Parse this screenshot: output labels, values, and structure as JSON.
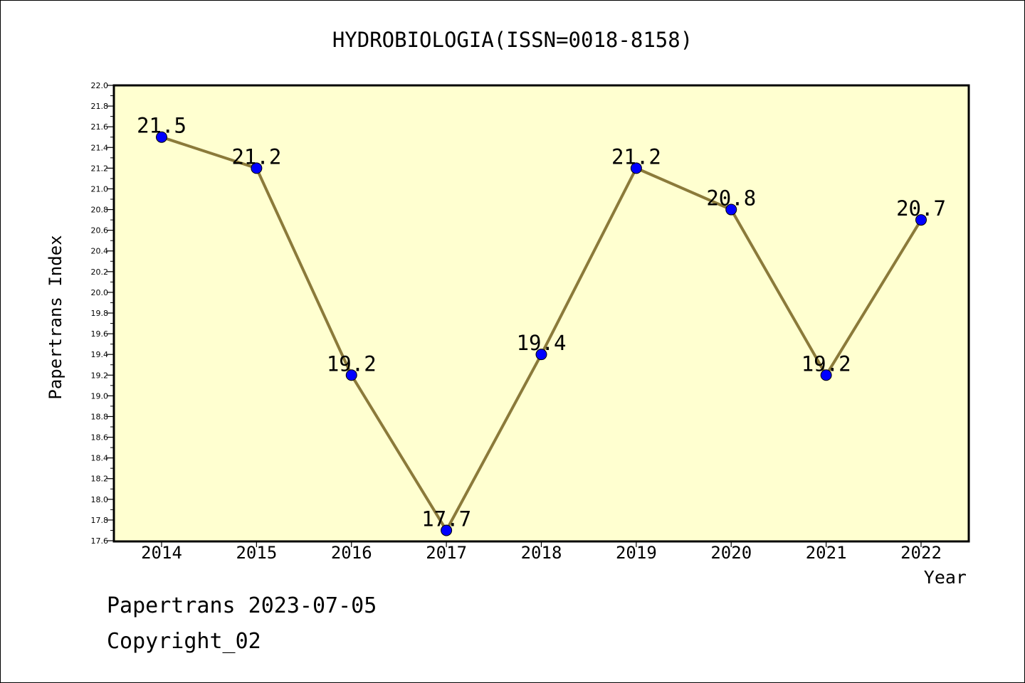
{
  "chart_data": {
    "type": "line",
    "title": "HYDROBIOLOGIA(ISSN=0018-8158)",
    "xlabel": "Year",
    "ylabel": "Papertrans Index",
    "categories": [
      "2014",
      "2015",
      "2016",
      "2017",
      "2018",
      "2019",
      "2020",
      "2021",
      "2022"
    ],
    "series": [
      {
        "values": [
          21.5,
          21.2,
          19.2,
          17.7,
          19.4,
          21.2,
          20.8,
          19.2,
          20.7
        ]
      }
    ],
    "data_labels": [
      "21.5",
      "21.2",
      "19.2",
      "17.7",
      "19.4",
      "21.2",
      "20.8",
      "19.2",
      "20.7"
    ],
    "ylim": [
      17.6,
      22.0
    ],
    "y_ticks": [
      "17.6",
      "17.8",
      "18.0",
      "18.2",
      "18.4",
      "18.6",
      "18.8",
      "19.0",
      "19.2",
      "19.4",
      "19.6",
      "19.8",
      "20.0",
      "20.2",
      "20.4",
      "20.6",
      "20.8",
      "21.0",
      "21.2",
      "21.4",
      "21.6",
      "21.8",
      "22.0"
    ],
    "grid": false,
    "colors": {
      "plot_background": "#FFFFD0",
      "line": "#8B7A3A",
      "marker": "#0000FF"
    }
  },
  "footer": {
    "line1": "Papertrans 2023-07-05",
    "line2": "Copyright_02"
  }
}
